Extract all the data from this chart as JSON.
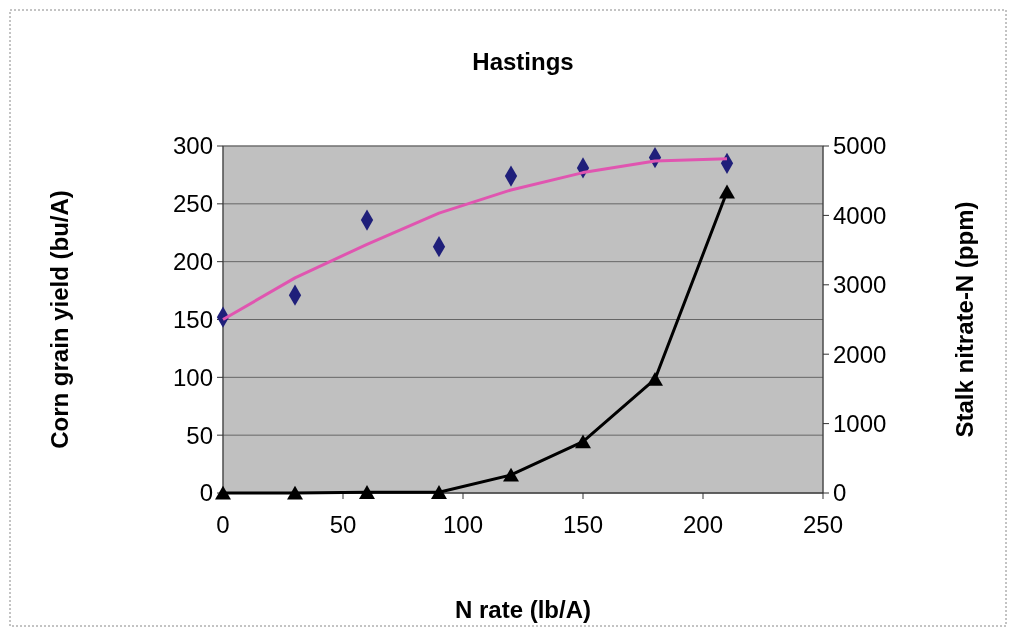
{
  "chart_data": {
    "type": "scatter",
    "title": "Hastings",
    "xlabel": "N rate (lb/A)",
    "ylabel": "Corn grain yield (bu/A)",
    "y2label": "Stalk nitrate-N (ppm)",
    "x": [
      0,
      30,
      60,
      90,
      120,
      150,
      180,
      210
    ],
    "xlim": [
      0,
      250
    ],
    "xticks": [
      0,
      50,
      100,
      150,
      200,
      250
    ],
    "ylim": [
      0,
      300
    ],
    "yticks": [
      0,
      50,
      100,
      150,
      200,
      250,
      300
    ],
    "y2lim": [
      0,
      5000
    ],
    "y2ticks": [
      0,
      1000,
      2000,
      3000,
      4000,
      5000
    ],
    "grid": "y",
    "series": [
      {
        "color": "#1f1f7a",
        "marker": "diamond",
        "values": [
          152,
          171,
          236,
          213,
          274,
          281,
          290,
          285
        ]
      },
      {
        "type": "line",
        "color": "#e055b0",
        "marker": "none",
        "x": [
          0,
          30,
          60,
          90,
          120,
          150,
          180,
          210
        ],
        "values": [
          150,
          186,
          215,
          242,
          262,
          277,
          287,
          289
        ]
      },
      {
        "type": "line",
        "axis": "y2",
        "color": "#000000",
        "marker": "triangle",
        "values": [
          0,
          0,
          10,
          10,
          260,
          740,
          1640,
          4340
        ]
      }
    ]
  }
}
